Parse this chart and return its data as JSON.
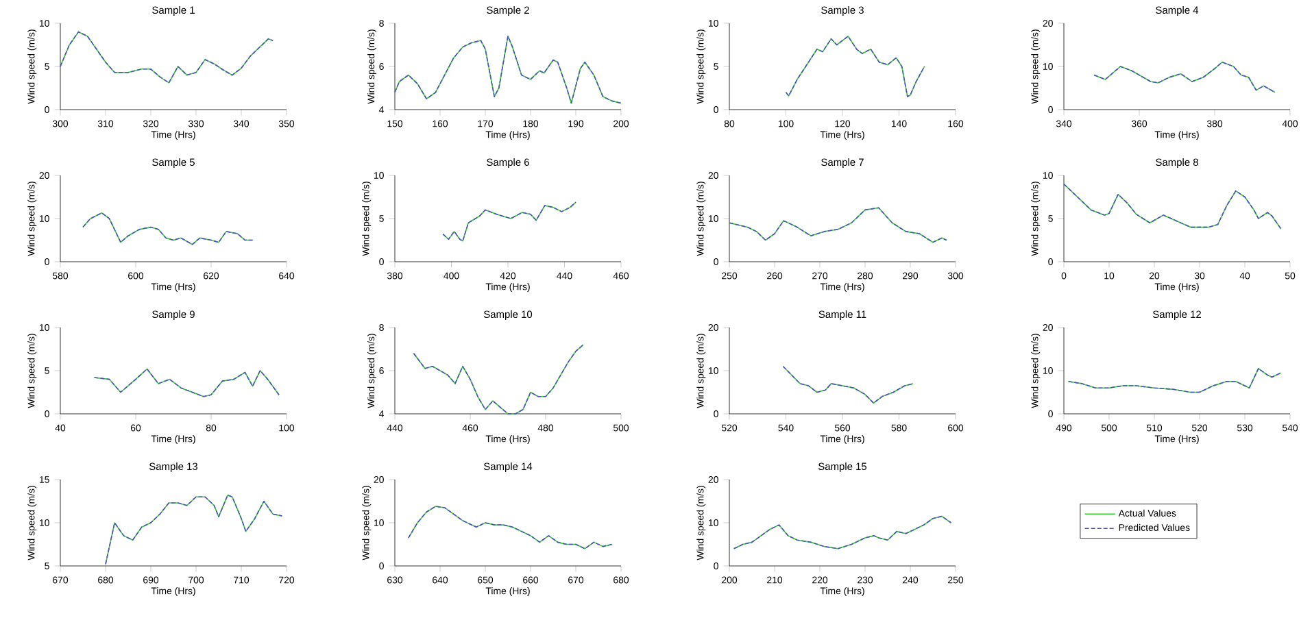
{
  "chart_data": [
    {
      "type": "line",
      "title": "Sample 1",
      "xlabel": "Time (Hrs)",
      "ylabel": "Wind speed (m/s)",
      "xlim": [
        300,
        350
      ],
      "xticks": [
        300,
        310,
        320,
        330,
        340,
        350
      ],
      "ylim": [
        0,
        10
      ],
      "yticks": [
        0,
        5,
        10
      ],
      "series": [
        {
          "color": "#33cc33",
          "line_style": "solid",
          "x": [
            300,
            302,
            304,
            306,
            308,
            310,
            312,
            315,
            318,
            320,
            322,
            324,
            326,
            328,
            330,
            332,
            334,
            336,
            338,
            340,
            342,
            344,
            346,
            347
          ],
          "values": [
            5,
            7.5,
            9,
            8.5,
            7,
            5.5,
            4.3,
            4.3,
            4.7,
            4.7,
            3.8,
            3.1,
            5,
            4,
            4.3,
            5.8,
            5.3,
            4.6,
            4,
            4.8,
            6.2,
            7.2,
            8.2,
            8
          ]
        },
        {
          "color": "#5050c0",
          "line_style": "dashed",
          "x": [
            300,
            302,
            304,
            306,
            308,
            310,
            312,
            315,
            318,
            320,
            322,
            324,
            326,
            328,
            330,
            332,
            334,
            336,
            338,
            340,
            342,
            344,
            346,
            347
          ],
          "values": [
            5,
            7.5,
            9,
            8.5,
            7,
            5.5,
            4.3,
            4.3,
            4.7,
            4.7,
            3.8,
            3.1,
            5,
            4,
            4.3,
            5.8,
            5.3,
            4.6,
            4,
            4.8,
            6.2,
            7.2,
            8.2,
            8
          ]
        }
      ]
    },
    {
      "type": "line",
      "title": "Sample 2",
      "xlabel": "Time (Hrs)",
      "ylabel": "Wind speed (m/s)",
      "xlim": [
        150,
        200
      ],
      "xticks": [
        150,
        160,
        170,
        180,
        190,
        200
      ],
      "ylim": [
        4,
        8
      ],
      "yticks": [
        4,
        6,
        8
      ],
      "series": [
        {
          "color": "#33cc33",
          "line_style": "solid",
          "x": [
            150,
            151,
            153,
            155,
            157,
            159,
            161,
            163,
            165,
            167,
            169,
            170,
            172,
            173,
            175,
            176,
            178,
            180,
            182,
            183,
            185,
            186,
            188,
            189,
            191,
            192,
            194,
            196,
            198,
            200
          ],
          "values": [
            4.8,
            5.3,
            5.6,
            5.2,
            4.5,
            4.8,
            5.6,
            6.4,
            6.9,
            7.1,
            7.2,
            6.8,
            4.6,
            5,
            7.4,
            6.9,
            5.6,
            5.4,
            5.8,
            5.7,
            6.3,
            6.2,
            5,
            4.3,
            5.9,
            6.2,
            5.6,
            4.6,
            4.4,
            4.3
          ]
        },
        {
          "color": "#5050c0",
          "line_style": "dashed",
          "x": [
            150,
            151,
            153,
            155,
            157,
            159,
            161,
            163,
            165,
            167,
            169,
            170,
            172,
            173,
            175,
            176,
            178,
            180,
            182,
            183,
            185,
            186,
            188,
            189,
            191,
            192,
            194,
            196,
            198,
            200
          ],
          "values": [
            4.8,
            5.3,
            5.6,
            5.2,
            4.5,
            4.8,
            5.6,
            6.4,
            6.9,
            7.1,
            7.2,
            6.8,
            4.6,
            5,
            7.4,
            6.9,
            5.6,
            5.4,
            5.8,
            5.7,
            6.3,
            6.2,
            5,
            4.3,
            5.9,
            6.2,
            5.6,
            4.6,
            4.4,
            4.3
          ]
        }
      ]
    },
    {
      "type": "line",
      "title": "Sample 3",
      "xlabel": "Time (Hrs)",
      "ylabel": "Wind speed (m/s)",
      "xlim": [
        80,
        160
      ],
      "xticks": [
        80,
        100,
        120,
        140,
        160
      ],
      "ylim": [
        0,
        10
      ],
      "yticks": [
        0,
        5,
        10
      ],
      "series": [
        {
          "color": "#33cc33",
          "line_style": "solid",
          "x": [
            100,
            101,
            104,
            108,
            111,
            113,
            116,
            118,
            120,
            122,
            125,
            127,
            130,
            133,
            136,
            139,
            141,
            143,
            144,
            146,
            149
          ],
          "values": [
            2,
            1.6,
            3.5,
            5.5,
            7,
            6.7,
            8.2,
            7.5,
            8,
            8.5,
            7,
            6.5,
            7,
            5.5,
            5.2,
            6,
            5,
            1.5,
            1.7,
            3.2,
            5
          ]
        },
        {
          "color": "#5050c0",
          "line_style": "dashed",
          "x": [
            100,
            101,
            104,
            108,
            111,
            113,
            116,
            118,
            120,
            122,
            125,
            127,
            130,
            133,
            136,
            139,
            141,
            143,
            144,
            146,
            149
          ],
          "values": [
            2,
            1.6,
            3.5,
            5.5,
            7,
            6.7,
            8.2,
            7.5,
            8,
            8.5,
            7,
            6.5,
            7,
            5.5,
            5.2,
            6,
            5,
            1.5,
            1.7,
            3.2,
            5
          ]
        }
      ]
    },
    {
      "type": "line",
      "title": "Sample 4",
      "xlabel": "Time (Hrs)",
      "ylabel": "Wind speed (m/s)",
      "xlim": [
        340,
        400
      ],
      "xticks": [
        340,
        360,
        380,
        400
      ],
      "ylim": [
        0,
        20
      ],
      "yticks": [
        0,
        10,
        20
      ],
      "series": [
        {
          "color": "#33cc33",
          "line_style": "solid",
          "x": [
            348,
            351,
            355,
            358,
            363,
            365,
            368,
            371,
            374,
            377,
            380,
            382,
            385,
            387,
            389,
            391,
            393,
            396
          ],
          "values": [
            8,
            7,
            10,
            9,
            6.5,
            6.2,
            7.5,
            8.3,
            6.5,
            7.5,
            9.5,
            11,
            10,
            8,
            7.5,
            4.5,
            5.5,
            4
          ]
        },
        {
          "color": "#5050c0",
          "line_style": "dashed",
          "x": [
            348,
            351,
            355,
            358,
            363,
            365,
            368,
            371,
            374,
            377,
            380,
            382,
            385,
            387,
            389,
            391,
            393,
            396
          ],
          "values": [
            8,
            7,
            10,
            9,
            6.5,
            6.2,
            7.5,
            8.3,
            6.5,
            7.5,
            9.5,
            11,
            10,
            8,
            7.5,
            4.5,
            5.5,
            4
          ]
        }
      ]
    },
    {
      "type": "line",
      "title": "Sample 5",
      "xlabel": "Time (Hrs)",
      "ylabel": "Wind speed (m/s)",
      "xlim": [
        580,
        640
      ],
      "xticks": [
        580,
        600,
        620,
        640
      ],
      "ylim": [
        0,
        20
      ],
      "yticks": [
        0,
        10,
        20
      ],
      "series": [
        {
          "color": "#33cc33",
          "line_style": "solid",
          "x": [
            586,
            588,
            591,
            593,
            596,
            598,
            601,
            604,
            606,
            608,
            610,
            612,
            615,
            617,
            620,
            622,
            624,
            627,
            629,
            631
          ],
          "values": [
            8,
            10,
            11.3,
            10,
            4.5,
            6,
            7.5,
            8,
            7.5,
            5.5,
            5,
            5.5,
            4,
            5.5,
            5,
            4.5,
            7,
            6.5,
            5,
            5
          ]
        },
        {
          "color": "#5050c0",
          "line_style": "dashed",
          "x": [
            586,
            588,
            591,
            593,
            596,
            598,
            601,
            604,
            606,
            608,
            610,
            612,
            615,
            617,
            620,
            622,
            624,
            627,
            629,
            631
          ],
          "values": [
            8,
            10,
            11.3,
            10,
            4.5,
            6,
            7.5,
            8,
            7.5,
            5.5,
            5,
            5.5,
            4,
            5.5,
            5,
            4.5,
            7,
            6.5,
            5,
            5
          ]
        }
      ]
    },
    {
      "type": "line",
      "title": "Sample 6",
      "xlabel": "Time (Hrs)",
      "ylabel": "Wind speed (m/s)",
      "xlim": [
        380,
        460
      ],
      "xticks": [
        380,
        400,
        420,
        440,
        460
      ],
      "ylim": [
        0,
        10
      ],
      "yticks": [
        0,
        5,
        10
      ],
      "series": [
        {
          "color": "#33cc33",
          "line_style": "solid",
          "x": [
            397,
            399,
            401,
            403,
            404,
            406,
            410,
            412,
            416,
            421,
            425,
            428,
            430,
            433,
            436,
            439,
            442,
            444
          ],
          "values": [
            3.2,
            2.6,
            3.5,
            2.6,
            2.4,
            4.5,
            5.3,
            6,
            5.5,
            5,
            5.7,
            5.5,
            4.8,
            6.5,
            6.3,
            5.8,
            6.3,
            6.9
          ]
        },
        {
          "color": "#5050c0",
          "line_style": "dashed",
          "x": [
            397,
            399,
            401,
            403,
            404,
            406,
            410,
            412,
            416,
            421,
            425,
            428,
            430,
            433,
            436,
            439,
            442,
            444
          ],
          "values": [
            3.2,
            2.6,
            3.5,
            2.6,
            2.4,
            4.5,
            5.3,
            6,
            5.5,
            5,
            5.7,
            5.5,
            4.8,
            6.5,
            6.3,
            5.8,
            6.3,
            6.9
          ]
        }
      ]
    },
    {
      "type": "line",
      "title": "Sample 7",
      "xlabel": "Time (Hrs)",
      "ylabel": "Wind speed (m/s)",
      "xlim": [
        250,
        300
      ],
      "xticks": [
        250,
        260,
        270,
        280,
        290,
        300
      ],
      "ylim": [
        0,
        20
      ],
      "yticks": [
        0,
        10,
        20
      ],
      "series": [
        {
          "color": "#33cc33",
          "line_style": "solid",
          "x": [
            250,
            254,
            256,
            258,
            260,
            262,
            265,
            268,
            271,
            274,
            277,
            280,
            283,
            286,
            289,
            292,
            295,
            297,
            298
          ],
          "values": [
            9,
            8,
            7,
            5,
            6.5,
            9.5,
            8,
            6,
            7,
            7.5,
            9,
            12,
            12.5,
            9,
            7,
            6.5,
            4.5,
            5.5,
            5
          ]
        },
        {
          "color": "#5050c0",
          "line_style": "dashed",
          "x": [
            250,
            254,
            256,
            258,
            260,
            262,
            265,
            268,
            271,
            274,
            277,
            280,
            283,
            286,
            289,
            292,
            295,
            297,
            298
          ],
          "values": [
            9,
            8,
            7,
            5,
            6.5,
            9.5,
            8,
            6,
            7,
            7.5,
            9,
            12,
            12.5,
            9,
            7,
            6.5,
            4.5,
            5.5,
            5
          ]
        }
      ]
    },
    {
      "type": "line",
      "title": "Sample 8",
      "xlabel": "Time (Hrs)",
      "ylabel": "Wind speed (m/s)",
      "xlim": [
        0,
        50
      ],
      "xticks": [
        0,
        10,
        20,
        30,
        40,
        50
      ],
      "ylim": [
        0,
        10
      ],
      "yticks": [
        0,
        5,
        10
      ],
      "series": [
        {
          "color": "#33cc33",
          "line_style": "solid",
          "x": [
            0,
            3,
            6,
            9,
            10,
            12,
            14,
            16,
            19,
            22,
            25,
            28,
            30,
            32,
            34,
            36,
            38,
            40,
            42,
            43,
            45,
            46,
            48
          ],
          "values": [
            9,
            7.5,
            6,
            5.4,
            5.6,
            7.8,
            6.8,
            5.5,
            4.5,
            5.4,
            4.7,
            4,
            4,
            4,
            4.3,
            6.5,
            8.2,
            7.5,
            6,
            5,
            5.7,
            5.3,
            3.8
          ]
        },
        {
          "color": "#5050c0",
          "line_style": "dashed",
          "x": [
            0,
            3,
            6,
            9,
            10,
            12,
            14,
            16,
            19,
            22,
            25,
            28,
            30,
            32,
            34,
            36,
            38,
            40,
            42,
            43,
            45,
            46,
            48
          ],
          "values": [
            9,
            7.5,
            6,
            5.4,
            5.6,
            7.8,
            6.8,
            5.5,
            4.5,
            5.4,
            4.7,
            4,
            4,
            4,
            4.3,
            6.5,
            8.2,
            7.5,
            6,
            5,
            5.7,
            5.3,
            3.8
          ]
        }
      ]
    },
    {
      "type": "line",
      "title": "Sample 9",
      "xlabel": "Time (Hrs)",
      "ylabel": "Wind speed (m/s)",
      "xlim": [
        40,
        100
      ],
      "xticks": [
        40,
        60,
        80,
        100
      ],
      "ylim": [
        0,
        10
      ],
      "yticks": [
        0,
        5,
        10
      ],
      "series": [
        {
          "color": "#33cc33",
          "line_style": "solid",
          "x": [
            49,
            53,
            56,
            60,
            63,
            66,
            69,
            72,
            75,
            78,
            80,
            83,
            86,
            89,
            91,
            93,
            95,
            98
          ],
          "values": [
            4.2,
            4,
            2.5,
            4,
            5.2,
            3.5,
            4,
            3,
            2.5,
            2,
            2.2,
            3.8,
            4,
            4.8,
            3.2,
            5,
            4,
            2.2
          ]
        },
        {
          "color": "#5050c0",
          "line_style": "dashed",
          "x": [
            49,
            53,
            56,
            60,
            63,
            66,
            69,
            72,
            75,
            78,
            80,
            83,
            86,
            89,
            91,
            93,
            95,
            98
          ],
          "values": [
            4.2,
            4,
            2.5,
            4,
            5.2,
            3.5,
            4,
            3,
            2.5,
            2,
            2.2,
            3.8,
            4,
            4.8,
            3.2,
            5,
            4,
            2.2
          ]
        }
      ]
    },
    {
      "type": "line",
      "title": "Sample 10",
      "xlabel": "Time (Hrs)",
      "ylabel": "Wind speed (m/s)",
      "xlim": [
        440,
        500
      ],
      "xticks": [
        440,
        460,
        480,
        500
      ],
      "ylim": [
        4,
        8
      ],
      "yticks": [
        4,
        6,
        8
      ],
      "series": [
        {
          "color": "#33cc33",
          "line_style": "solid",
          "x": [
            445,
            448,
            450,
            452,
            454,
            456,
            458,
            460,
            462,
            464,
            466,
            468,
            470,
            472,
            474,
            476,
            478,
            480,
            482,
            484,
            486,
            488,
            490
          ],
          "values": [
            6.8,
            6.1,
            6.2,
            6,
            5.8,
            5.4,
            6.2,
            5.6,
            4.8,
            4.2,
            4.6,
            4.3,
            4,
            4,
            4.2,
            5,
            4.8,
            4.8,
            5.2,
            5.8,
            6.4,
            6.9,
            7.2
          ]
        },
        {
          "color": "#5050c0",
          "line_style": "dashed",
          "x": [
            445,
            448,
            450,
            452,
            454,
            456,
            458,
            460,
            462,
            464,
            466,
            468,
            470,
            472,
            474,
            476,
            478,
            480,
            482,
            484,
            486,
            488,
            490
          ],
          "values": [
            6.8,
            6.1,
            6.2,
            6,
            5.8,
            5.4,
            6.2,
            5.6,
            4.8,
            4.2,
            4.6,
            4.3,
            4,
            4,
            4.2,
            5,
            4.8,
            4.8,
            5.2,
            5.8,
            6.4,
            6.9,
            7.2
          ]
        }
      ]
    },
    {
      "type": "line",
      "title": "Sample 11",
      "xlabel": "Time (Hrs)",
      "ylabel": "Wind speed (m/s)",
      "xlim": [
        520,
        600
      ],
      "xticks": [
        520,
        540,
        560,
        580,
        600
      ],
      "ylim": [
        0,
        20
      ],
      "yticks": [
        0,
        10,
        20
      ],
      "series": [
        {
          "color": "#33cc33",
          "line_style": "solid",
          "x": [
            539,
            545,
            548,
            551,
            554,
            556,
            560,
            564,
            568,
            571,
            574,
            578,
            582,
            585
          ],
          "values": [
            11,
            7,
            6.5,
            5,
            5.5,
            7,
            6.5,
            6,
            4.5,
            2.5,
            4,
            5,
            6.5,
            7
          ]
        },
        {
          "color": "#5050c0",
          "line_style": "dashed",
          "x": [
            539,
            545,
            548,
            551,
            554,
            556,
            560,
            564,
            568,
            571,
            574,
            578,
            582,
            585
          ],
          "values": [
            11,
            7,
            6.5,
            5,
            5.5,
            7,
            6.5,
            6,
            4.5,
            2.5,
            4,
            5,
            6.5,
            7
          ]
        }
      ]
    },
    {
      "type": "line",
      "title": "Sample 12",
      "xlabel": "Time (Hrs)",
      "ylabel": "Wind speed (m/s)",
      "xlim": [
        490,
        540
      ],
      "xticks": [
        490,
        500,
        510,
        520,
        530,
        540
      ],
      "ylim": [
        0,
        20
      ],
      "yticks": [
        0,
        10,
        20
      ],
      "series": [
        {
          "color": "#33cc33",
          "line_style": "solid",
          "x": [
            491,
            494,
            497,
            500,
            503,
            506,
            510,
            514,
            518,
            520,
            523,
            526,
            528,
            531,
            533,
            535,
            536,
            538
          ],
          "values": [
            7.5,
            7,
            6,
            6,
            6.5,
            6.5,
            6,
            5.7,
            5,
            5,
            6.5,
            7.5,
            7.5,
            6,
            10.5,
            9,
            8.5,
            9.5
          ]
        },
        {
          "color": "#5050c0",
          "line_style": "dashed",
          "x": [
            491,
            494,
            497,
            500,
            503,
            506,
            510,
            514,
            518,
            520,
            523,
            526,
            528,
            531,
            533,
            535,
            536,
            538
          ],
          "values": [
            7.5,
            7,
            6,
            6,
            6.5,
            6.5,
            6,
            5.7,
            5,
            5,
            6.5,
            7.5,
            7.5,
            6,
            10.5,
            9,
            8.5,
            9.5
          ]
        }
      ]
    },
    {
      "type": "line",
      "title": "Sample 13",
      "xlabel": "Time (Hrs)",
      "ylabel": "Wind speed (m/s)",
      "xlim": [
        670,
        720
      ],
      "xticks": [
        670,
        680,
        690,
        700,
        710,
        720
      ],
      "ylim": [
        5,
        15
      ],
      "yticks": [
        5,
        10,
        15
      ],
      "series": [
        {
          "color": "#33cc33",
          "line_style": "solid",
          "x": [
            680,
            682,
            684,
            686,
            688,
            690,
            692,
            694,
            696,
            698,
            700,
            702,
            704,
            705,
            707,
            708,
            710,
            711,
            713,
            715,
            717,
            719
          ],
          "values": [
            5.2,
            10,
            8.5,
            8,
            9.5,
            10,
            11,
            12.3,
            12.3,
            12,
            13,
            13,
            12,
            10.7,
            13.2,
            13,
            10.5,
            9,
            10.5,
            12.5,
            11,
            10.8
          ]
        },
        {
          "color": "#5050c0",
          "line_style": "dashed",
          "x": [
            680,
            682,
            684,
            686,
            688,
            690,
            692,
            694,
            696,
            698,
            700,
            702,
            704,
            705,
            707,
            708,
            710,
            711,
            713,
            715,
            717,
            719
          ],
          "values": [
            5.2,
            10,
            8.5,
            8,
            9.5,
            10,
            11,
            12.3,
            12.3,
            12,
            13,
            13,
            12,
            10.7,
            13.2,
            13,
            10.5,
            9,
            10.5,
            12.5,
            11,
            10.8
          ]
        }
      ]
    },
    {
      "type": "line",
      "title": "Sample 14",
      "xlabel": "Time (Hrs)",
      "ylabel": "Wind speed (m/s)",
      "xlim": [
        630,
        680
      ],
      "xticks": [
        630,
        640,
        650,
        660,
        670,
        680
      ],
      "ylim": [
        0,
        20
      ],
      "yticks": [
        0,
        10,
        20
      ],
      "series": [
        {
          "color": "#33cc33",
          "line_style": "solid",
          "x": [
            633,
            635,
            637,
            639,
            641,
            643,
            645,
            648,
            650,
            652,
            654,
            656,
            658,
            660,
            662,
            664,
            666,
            668,
            670,
            672,
            674,
            676,
            678
          ],
          "values": [
            6.5,
            10,
            12.5,
            13.8,
            13.5,
            12,
            10.5,
            9,
            10,
            9.5,
            9.5,
            9,
            8,
            7,
            5.5,
            7,
            5.5,
            5,
            5,
            4,
            5.5,
            4.5,
            5
          ]
        },
        {
          "color": "#5050c0",
          "line_style": "dashed",
          "x": [
            633,
            635,
            637,
            639,
            641,
            643,
            645,
            648,
            650,
            652,
            654,
            656,
            658,
            660,
            662,
            664,
            666,
            668,
            670,
            672,
            674,
            676,
            678
          ],
          "values": [
            6.5,
            10,
            12.5,
            13.8,
            13.5,
            12,
            10.5,
            9,
            10,
            9.5,
            9.5,
            9,
            8,
            7,
            5.5,
            7,
            5.5,
            5,
            5,
            4,
            5.5,
            4.5,
            5
          ]
        }
      ]
    },
    {
      "type": "line",
      "title": "Sample 15",
      "xlabel": "Time (Hrs)",
      "ylabel": "Wind speed (m/s)",
      "xlim": [
        200,
        250
      ],
      "xticks": [
        200,
        210,
        220,
        230,
        240,
        250
      ],
      "ylim": [
        0,
        20
      ],
      "yticks": [
        0,
        10,
        20
      ],
      "legend": "right",
      "series": [
        {
          "name": "Actual Values",
          "color": "#33cc33",
          "line_style": "solid",
          "x": [
            201,
            203,
            205,
            207,
            209,
            211,
            213,
            215,
            218,
            221,
            224,
            227,
            230,
            232,
            233,
            235,
            237,
            239,
            241,
            243,
            245,
            247,
            249
          ],
          "values": [
            4,
            5,
            5.5,
            7,
            8.5,
            9.5,
            7,
            6,
            5.5,
            4.5,
            4,
            5,
            6.5,
            7,
            6.5,
            6,
            8,
            7.5,
            8.5,
            9.5,
            11,
            11.5,
            10
          ]
        },
        {
          "name": "Predicted Values",
          "color": "#5050c0",
          "line_style": "dashed",
          "x": [
            201,
            203,
            205,
            207,
            209,
            211,
            213,
            215,
            218,
            221,
            224,
            227,
            230,
            232,
            233,
            235,
            237,
            239,
            241,
            243,
            245,
            247,
            249
          ],
          "values": [
            4,
            5,
            5.5,
            7,
            8.5,
            9.5,
            7,
            6,
            5.5,
            4.5,
            4,
            5,
            6.5,
            7,
            6.5,
            6,
            8,
            7.5,
            8.5,
            9.5,
            11,
            11.5,
            10
          ]
        }
      ]
    }
  ]
}
